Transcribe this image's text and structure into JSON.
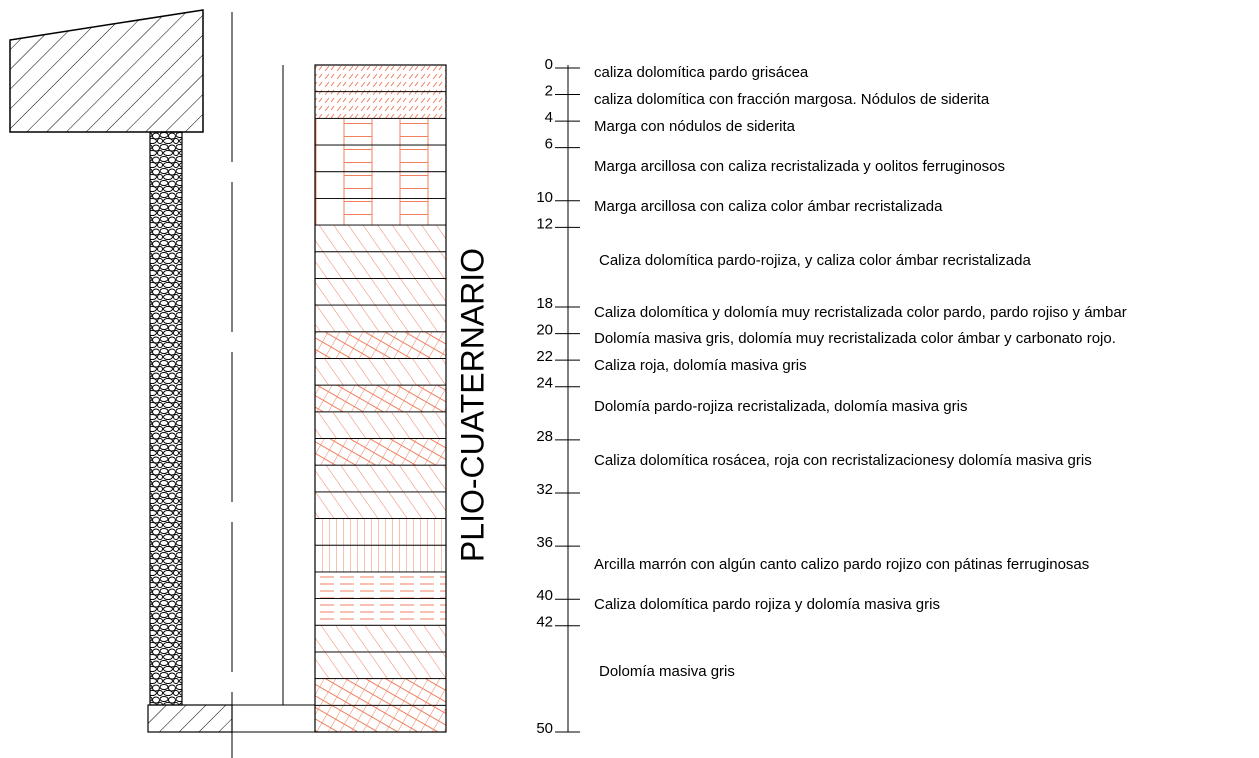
{
  "side_label": "PLIO-CUATERNARIO",
  "depths": [
    0,
    2,
    4,
    6,
    10,
    12,
    18,
    20,
    22,
    24,
    28,
    32,
    36,
    40,
    42,
    50
  ],
  "layers": [
    "caliza dolomítica pardo grisácea",
    "caliza dolomítica con fracción margosa. Nódulos de siderita",
    "Marga con nódulos de siderita",
    "Marga arcillosa con caliza recristalizada y oolitos ferruginosos",
    "Marga arcillosa con caliza color ámbar recristalizada",
    "Caliza dolomítica pardo-rojiza, y caliza color ámbar recristalizada",
    "Caliza dolomítica y dolomía muy recristalizada color pardo, pardo rojiso y ámbar",
    "Dolomía masiva gris, dolomía muy recristalizada color ámbar y carbonato rojo.",
    "Caliza roja, dolomía masiva gris",
    "Dolomía pardo-rojiza recristalizada, dolomía masiva gris",
    "Caliza dolomítica rosácea, roja con recristalizacionesy dolomía masiva gris",
    "Arcilla marrón con algún canto calizo pardo rojizo con pátinas ferruginosas",
    "Caliza dolomítica pardo rojiza y dolomía masiva gris",
    "Dolomía masiva gris"
  ]
}
